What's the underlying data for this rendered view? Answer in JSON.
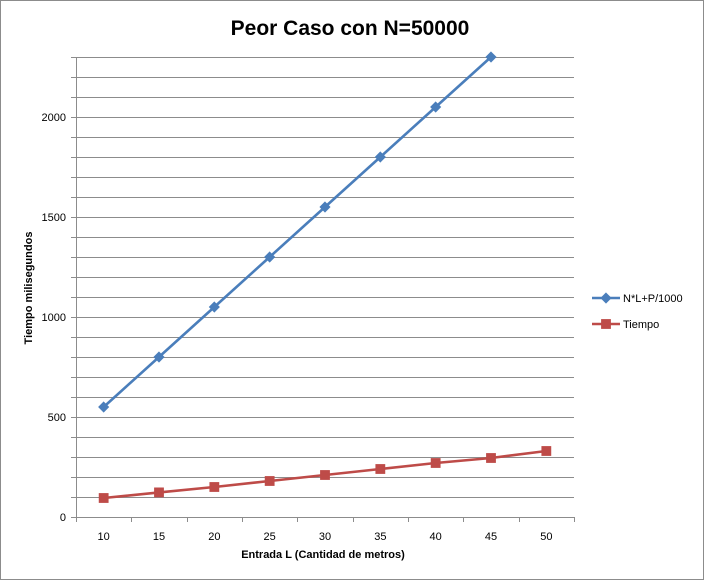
{
  "colors": {
    "series_blue": "#4A7EBB",
    "series_red": "#BE4B48",
    "grid": "#8C8C8C",
    "axis": "#8C8C8C"
  },
  "chart_data": {
    "type": "line",
    "title": "Peor Caso con N=50000",
    "xlabel": "Entrada L (Cantidad de metros)",
    "ylabel": "Tiempo milisegundos",
    "categories": [
      "10",
      "15",
      "20",
      "25",
      "30",
      "35",
      "40",
      "45",
      "50"
    ],
    "ylim": [
      0,
      2300
    ],
    "y_ticks": [
      0,
      500,
      1000,
      1500,
      2000
    ],
    "grid": true,
    "legend_position": "right",
    "series": [
      {
        "name": "N*L+P/1000",
        "marker": "diamond",
        "color": "#4A7EBB",
        "values": [
          550,
          800,
          1050,
          1300,
          1550,
          1800,
          2050,
          2300,
          null
        ]
      },
      {
        "name": "Tiempo",
        "marker": "square",
        "color": "#BE4B48",
        "values": [
          95,
          123,
          150,
          180,
          210,
          240,
          270,
          295,
          330
        ]
      }
    ]
  }
}
